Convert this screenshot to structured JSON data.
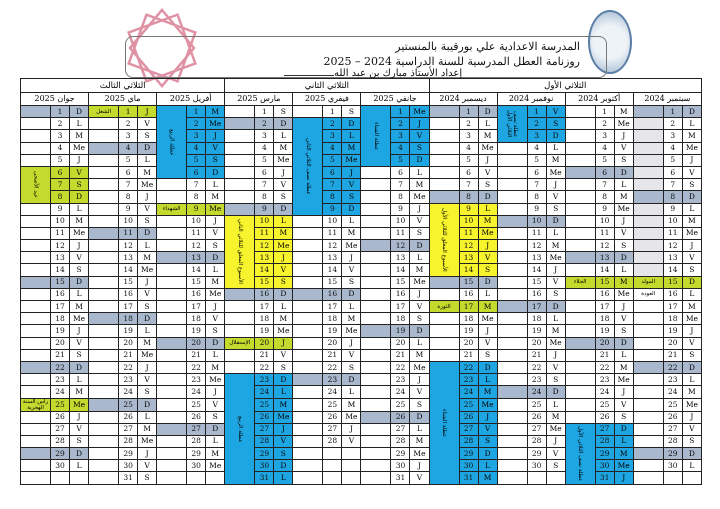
{
  "header": {
    "school": "المدرسة الاعدادية علي بورقيبة بالمنستير",
    "title": "روزنامة العطل المدرسية للسنة الدراسية 2024 – 2025",
    "author": "إعداد الأستاذ مبارك بن عبد الله"
  },
  "colors": {
    "sunday": "#a9b8cc",
    "vacation": "#1ea6e3",
    "closed_week": "#f7f32c",
    "holiday": "#c4db2e",
    "pre_school": "#e6e6ea"
  },
  "trimesters": [
    {
      "label": "الثلاثي الأول",
      "months": 4
    },
    {
      "label": "الثلاثي الثاني",
      "months": 3
    },
    {
      "label": "الثلاثي الثالث",
      "months": 3
    }
  ],
  "months": [
    {
      "name": "سبتمبر 2024",
      "weekdays": [
        "D",
        "L",
        "M",
        "Me",
        "J",
        "V",
        "S",
        "D",
        "L",
        "M",
        "Me",
        "J",
        "V",
        "S",
        "D",
        "L",
        "M",
        "Me",
        "J",
        "V",
        "S",
        "D",
        "L",
        "M",
        "Me",
        "J",
        "V",
        "S",
        "D",
        "L"
      ],
      "light_notes": [
        1,
        14
      ],
      "blocks": [
        {
          "from": 15,
          "to": 15,
          "color": "green",
          "note": "المولد"
        },
        {
          "from": 16,
          "to": 16,
          "color": "none",
          "note": "العودة"
        }
      ]
    },
    {
      "name": "أكتوبر 2024",
      "weekdays": [
        "M",
        "Me",
        "J",
        "V",
        "S",
        "D",
        "L",
        "M",
        "Me",
        "J",
        "V",
        "S",
        "D",
        "L",
        "M",
        "Me",
        "J",
        "V",
        "S",
        "D",
        "L",
        "M",
        "Me",
        "J",
        "V",
        "S",
        "D",
        "L",
        "M",
        "Me",
        "J"
      ],
      "blocks": [
        {
          "from": 15,
          "to": 15,
          "color": "green",
          "note": "الجلاء"
        },
        {
          "from": 27,
          "to": 31,
          "color": "blue",
          "note": "عطلة نصف الثلاثي الأول"
        }
      ]
    },
    {
      "name": "نوفمبر 2024",
      "weekdays": [
        "V",
        "S",
        "D",
        "L",
        "M",
        "Me",
        "J",
        "V",
        "S",
        "D",
        "L",
        "M",
        "Me",
        "J",
        "V",
        "S",
        "D",
        "L",
        "M",
        "Me",
        "J",
        "V",
        "S",
        "D",
        "L",
        "M",
        "Me",
        "J",
        "V",
        "S"
      ],
      "blocks": [
        {
          "from": 1,
          "to": 3,
          "color": "blue",
          "note": "عطلة نصف الثلاثي الأول"
        }
      ]
    },
    {
      "name": "ديسمبر 2024",
      "weekdays": [
        "D",
        "L",
        "M",
        "Me",
        "J",
        "V",
        "S",
        "D",
        "L",
        "M",
        "Me",
        "J",
        "V",
        "S",
        "D",
        "L",
        "M",
        "Me",
        "J",
        "V",
        "S",
        "D",
        "L",
        "M",
        "Me",
        "J",
        "V",
        "S",
        "D",
        "L",
        "M"
      ],
      "blocks": [
        {
          "from": 9,
          "to": 14,
          "color": "yellow",
          "note": "الأسبوع المغلق للثلاثي الأول"
        },
        {
          "from": 17,
          "to": 17,
          "color": "green",
          "note": "الثورة"
        },
        {
          "from": 22,
          "to": 31,
          "color": "blue",
          "note": "عطلة الشتاء"
        }
      ]
    },
    {
      "name": "جانفي 2025",
      "weekdays": [
        "Me",
        "J",
        "V",
        "S",
        "D",
        "L",
        "M",
        "Me",
        "J",
        "V",
        "S",
        "D",
        "L",
        "M",
        "Me",
        "J",
        "V",
        "S",
        "D",
        "L",
        "M",
        "Me",
        "J",
        "V",
        "S",
        "D",
        "L",
        "M",
        "Me",
        "J",
        "V"
      ],
      "blocks": [
        {
          "from": 1,
          "to": 5,
          "color": "blue",
          "note": "عطلة الشتاء"
        }
      ]
    },
    {
      "name": "فيفري 2025",
      "weekdays": [
        "S",
        "D",
        "L",
        "M",
        "Me",
        "J",
        "V",
        "S",
        "D",
        "L",
        "M",
        "Me",
        "J",
        "V",
        "S",
        "D",
        "L",
        "M",
        "Me",
        "J",
        "V",
        "S",
        "D",
        "L",
        "M",
        "Me",
        "J",
        "V"
      ],
      "blocks": [
        {
          "from": 2,
          "to": 9,
          "color": "blue",
          "note": "عطلة نصف الثلاثي الثاني"
        }
      ]
    },
    {
      "name": "مارس 2025",
      "weekdays": [
        "S",
        "D",
        "L",
        "M",
        "Me",
        "J",
        "V",
        "S",
        "D",
        "L",
        "M",
        "Me",
        "J",
        "V",
        "S",
        "D",
        "L",
        "M",
        "Me",
        "J",
        "V",
        "S",
        "D",
        "L",
        "M",
        "Me",
        "J",
        "V",
        "S",
        "D",
        "L"
      ],
      "blocks": [
        {
          "from": 10,
          "to": 15,
          "color": "yellow",
          "note": "الأسبوع المغلق للثلاثي الثاني"
        },
        {
          "from": 20,
          "to": 20,
          "color": "green",
          "note": "الإستقلال"
        },
        {
          "from": 23,
          "to": 31,
          "color": "blue",
          "note": "عطلة الربيع"
        }
      ]
    },
    {
      "name": "أفريل 2025",
      "weekdays": [
        "M",
        "Me",
        "J",
        "V",
        "S",
        "D",
        "L",
        "M",
        "Me",
        "J",
        "V",
        "S",
        "D",
        "L",
        "M",
        "Me",
        "J",
        "V",
        "S",
        "D",
        "L",
        "M",
        "Me",
        "J",
        "V",
        "S",
        "D",
        "L",
        "M",
        "Me"
      ],
      "blocks": [
        {
          "from": 1,
          "to": 6,
          "color": "blue",
          "note": "عطلة الربيع"
        },
        {
          "from": 9,
          "to": 9,
          "color": "green",
          "note": "الشهداء"
        }
      ]
    },
    {
      "name": "ماي 2025",
      "weekdays": [
        "J",
        "V",
        "S",
        "D",
        "L",
        "M",
        "Me",
        "J",
        "V",
        "S",
        "D",
        "L",
        "M",
        "Me",
        "J",
        "V",
        "S",
        "D",
        "L",
        "M",
        "Me",
        "J",
        "V",
        "S",
        "D",
        "L",
        "M",
        "Me",
        "J",
        "V",
        "S"
      ],
      "blocks": [
        {
          "from": 1,
          "to": 1,
          "color": "green",
          "note": "الشغل"
        }
      ]
    },
    {
      "name": "جوان 2025",
      "weekdays": [
        "D",
        "L",
        "M",
        "Me",
        "J",
        "V",
        "S",
        "D",
        "L",
        "M",
        "Me",
        "J",
        "V",
        "S",
        "D",
        "L",
        "M",
        "Me",
        "J",
        "V",
        "S",
        "D",
        "L",
        "M",
        "Me",
        "J",
        "V",
        "S",
        "D",
        "L"
      ],
      "blocks": [
        {
          "from": 6,
          "to": 8,
          "color": "green",
          "note": "عيد الأضحى"
        },
        {
          "from": 25,
          "to": 25,
          "color": "green",
          "note": "رأس السنة الهجرية"
        }
      ]
    }
  ]
}
